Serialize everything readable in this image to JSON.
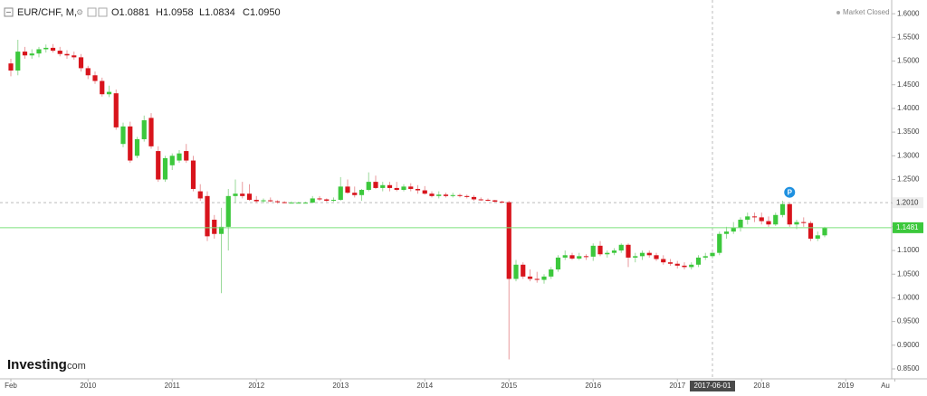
{
  "chart_data": {
    "type": "candlestick",
    "header": {
      "symbol": "EUR/CHF, M,",
      "ohlc": [
        "O1.0881",
        "H1.0958",
        "L1.0834",
        "C1.0950"
      ]
    },
    "status": "Market Closed",
    "logo": {
      "brand": "Investing",
      "suffix": ".com"
    },
    "pivot_marker": "P",
    "categories": [
      "Feb",
      null,
      null,
      null,
      null,
      null,
      null,
      null,
      null,
      null,
      null,
      "2010",
      null,
      null,
      null,
      null,
      null,
      null,
      null,
      null,
      null,
      null,
      null,
      "2011",
      null,
      null,
      null,
      null,
      null,
      null,
      null,
      null,
      null,
      null,
      null,
      "2012",
      null,
      null,
      null,
      null,
      null,
      null,
      null,
      null,
      null,
      null,
      null,
      "2013",
      null,
      null,
      null,
      null,
      null,
      null,
      null,
      null,
      null,
      null,
      null,
      "2014",
      null,
      null,
      null,
      null,
      null,
      null,
      null,
      null,
      null,
      null,
      null,
      "2015",
      null,
      null,
      null,
      null,
      null,
      null,
      null,
      null,
      null,
      null,
      null,
      "2016",
      null,
      null,
      null,
      null,
      null,
      null,
      null,
      null,
      null,
      null,
      null,
      "2017",
      null,
      null,
      null,
      null,
      null,
      null,
      null,
      null,
      null,
      null,
      null,
      "2018",
      null,
      null,
      null,
      null,
      null,
      null,
      null,
      null,
      null,
      null,
      null,
      "2019",
      null,
      null,
      null,
      null,
      null,
      null,
      "Au"
    ],
    "open": [
      1.495,
      1.48,
      1.52,
      1.512,
      1.516,
      1.525,
      1.528,
      1.522,
      1.515,
      1.512,
      1.508,
      1.485,
      1.47,
      1.458,
      1.43,
      1.432,
      1.325,
      1.362,
      1.3,
      1.335,
      1.38,
      1.31,
      1.25,
      1.28,
      1.29,
      1.31,
      1.29,
      1.225,
      1.215,
      1.165,
      1.135,
      1.15,
      1.215,
      1.22,
      1.22,
      1.207,
      1.204,
      1.206,
      1.204,
      1.202,
      1.201,
      1.201,
      1.201,
      1.201,
      1.21,
      1.208,
      1.205,
      1.207,
      1.235,
      1.222,
      1.217,
      1.228,
      1.245,
      1.232,
      1.238,
      1.232,
      1.228,
      1.235,
      1.23,
      1.227,
      1.22,
      1.215,
      1.218,
      1.215,
      1.217,
      1.215,
      1.213,
      1.208,
      1.207,
      1.206,
      1.203,
      1.202,
      1.04,
      1.07,
      1.045,
      1.04,
      1.038,
      1.045,
      1.06,
      1.085,
      1.09,
      1.083,
      1.088,
      1.087,
      1.11,
      1.092,
      1.095,
      1.1,
      1.112,
      1.085,
      1.088,
      1.095,
      1.09,
      1.082,
      1.075,
      1.072,
      1.068,
      1.065,
      1.07,
      1.085,
      1.0881,
      1.095,
      1.135,
      1.14,
      1.148,
      1.165,
      1.172,
      1.17,
      1.162,
      1.155,
      1.175,
      1.198,
      1.155,
      1.16,
      1.158,
      1.125,
      1.132,
      null,
      null,
      null,
      null,
      null,
      null,
      null,
      null,
      null,
      null
    ],
    "high": [
      1.505,
      1.545,
      1.53,
      1.525,
      1.53,
      1.535,
      1.536,
      1.53,
      1.523,
      1.52,
      1.515,
      1.49,
      1.478,
      1.465,
      1.448,
      1.44,
      1.37,
      1.372,
      1.34,
      1.385,
      1.39,
      1.32,
      1.3,
      1.305,
      1.312,
      1.325,
      1.3,
      1.24,
      1.225,
      1.175,
      1.19,
      1.23,
      1.25,
      1.245,
      1.24,
      1.215,
      1.21,
      1.212,
      1.206,
      1.204,
      1.204,
      1.203,
      1.203,
      1.215,
      1.215,
      1.21,
      1.212,
      1.255,
      1.25,
      1.235,
      1.23,
      1.265,
      1.258,
      1.245,
      1.245,
      1.245,
      1.24,
      1.242,
      1.238,
      1.236,
      1.225,
      1.225,
      1.222,
      1.222,
      1.22,
      1.218,
      1.217,
      1.212,
      1.21,
      1.207,
      1.205,
      1.205,
      1.08,
      1.075,
      1.06,
      1.055,
      1.05,
      1.065,
      1.09,
      1.1,
      1.095,
      1.095,
      1.092,
      1.115,
      1.12,
      1.1,
      1.105,
      1.115,
      1.115,
      1.095,
      1.1,
      1.1,
      1.095,
      1.09,
      1.082,
      1.078,
      1.075,
      1.075,
      1.09,
      1.095,
      1.0958,
      1.14,
      1.15,
      1.16,
      1.17,
      1.18,
      1.18,
      1.18,
      1.172,
      1.18,
      1.205,
      1.2,
      1.165,
      1.17,
      1.162,
      1.14,
      1.15,
      null,
      null,
      null,
      null,
      null,
      null,
      null,
      null,
      null,
      null
    ],
    "low": [
      1.468,
      1.47,
      1.505,
      1.505,
      1.508,
      1.518,
      1.518,
      1.51,
      1.505,
      1.503,
      1.478,
      1.462,
      1.452,
      1.425,
      1.424,
      1.355,
      1.318,
      1.285,
      1.295,
      1.33,
      1.315,
      1.245,
      1.245,
      1.27,
      1.285,
      1.285,
      1.225,
      1.205,
      1.12,
      1.125,
      1.01,
      1.1,
      1.2,
      1.21,
      1.205,
      1.2,
      1.2,
      1.202,
      1.199,
      1.2,
      1.2,
      1.2,
      1.2,
      1.2,
      1.205,
      1.203,
      1.203,
      1.205,
      1.22,
      1.212,
      1.205,
      1.225,
      1.23,
      1.225,
      1.225,
      1.225,
      1.225,
      1.225,
      1.22,
      1.218,
      1.212,
      1.21,
      1.212,
      1.212,
      1.212,
      1.21,
      1.205,
      1.205,
      1.204,
      1.202,
      1.2,
      0.87,
      1.035,
      1.04,
      1.035,
      1.032,
      1.03,
      1.04,
      1.055,
      1.08,
      1.08,
      1.08,
      1.08,
      1.078,
      1.088,
      1.085,
      1.09,
      1.095,
      1.065,
      1.075,
      1.08,
      1.085,
      1.078,
      1.07,
      1.068,
      1.062,
      1.06,
      1.06,
      1.065,
      1.08,
      1.0834,
      1.09,
      1.125,
      1.135,
      1.14,
      1.155,
      1.16,
      1.155,
      1.15,
      1.152,
      1.17,
      1.15,
      1.145,
      1.15,
      1.12,
      1.12,
      1.128,
      null,
      null,
      null,
      null,
      null,
      null,
      null,
      null,
      null,
      null
    ],
    "close": [
      1.48,
      1.52,
      1.512,
      1.516,
      1.525,
      1.528,
      1.522,
      1.515,
      1.512,
      1.508,
      1.485,
      1.47,
      1.458,
      1.43,
      1.435,
      1.36,
      1.362,
      1.29,
      1.335,
      1.375,
      1.32,
      1.25,
      1.295,
      1.3,
      1.305,
      1.29,
      1.23,
      1.21,
      1.13,
      1.135,
      1.15,
      1.215,
      1.22,
      1.215,
      1.207,
      1.204,
      1.206,
      1.204,
      1.202,
      1.201,
      1.201,
      1.201,
      1.201,
      1.21,
      1.208,
      1.205,
      1.207,
      1.235,
      1.222,
      1.217,
      1.228,
      1.245,
      1.232,
      1.238,
      1.232,
      1.228,
      1.235,
      1.23,
      1.227,
      1.22,
      1.215,
      1.218,
      1.215,
      1.217,
      1.215,
      1.213,
      1.208,
      1.207,
      1.206,
      1.203,
      1.202,
      1.04,
      1.07,
      1.045,
      1.04,
      1.038,
      1.045,
      1.06,
      1.085,
      1.09,
      1.083,
      1.088,
      1.087,
      1.11,
      1.092,
      1.095,
      1.1,
      1.112,
      1.085,
      1.088,
      1.095,
      1.09,
      1.082,
      1.075,
      1.072,
      1.068,
      1.065,
      1.07,
      1.085,
      1.088,
      1.095,
      1.135,
      1.14,
      1.148,
      1.165,
      1.172,
      1.17,
      1.162,
      1.155,
      1.175,
      1.198,
      1.155,
      1.16,
      1.158,
      1.125,
      1.132,
      1.1481,
      null,
      null,
      null,
      null,
      null,
      null,
      null,
      null,
      null,
      null
    ],
    "up_color": "#3cc83c",
    "down_color": "#d8141c",
    "last_color": "#7be07b",
    "ylim": [
      0.829,
      1.629
    ],
    "yticks": [
      {
        "value": 0.85,
        "label": "0.8500"
      },
      {
        "value": 0.9,
        "label": "0.9000"
      },
      {
        "value": 0.95,
        "label": "0.9500"
      },
      {
        "value": 1.0,
        "label": "1.0000"
      },
      {
        "value": 1.05,
        "label": "1.0500"
      },
      {
        "value": 1.1,
        "label": "1.1000"
      },
      {
        "value": 1.15,
        "label": "1.1500"
      },
      {
        "value": 1.2,
        "label": "1.2000"
      },
      {
        "value": 1.25,
        "label": "1.2500"
      },
      {
        "value": 1.3,
        "label": "1.3000"
      },
      {
        "value": 1.35,
        "label": "1.3500"
      },
      {
        "value": 1.4,
        "label": "1.4000"
      },
      {
        "value": 1.45,
        "label": "1.4500"
      },
      {
        "value": 1.5,
        "label": "1.5000"
      },
      {
        "value": 1.55,
        "label": "1.5500"
      },
      {
        "value": 1.6,
        "label": "1.6000"
      }
    ],
    "crosshair": {
      "x_label": "2017-06-01",
      "y": {
        "value": 1.201,
        "label": "1.2010"
      }
    },
    "grid": false
  }
}
